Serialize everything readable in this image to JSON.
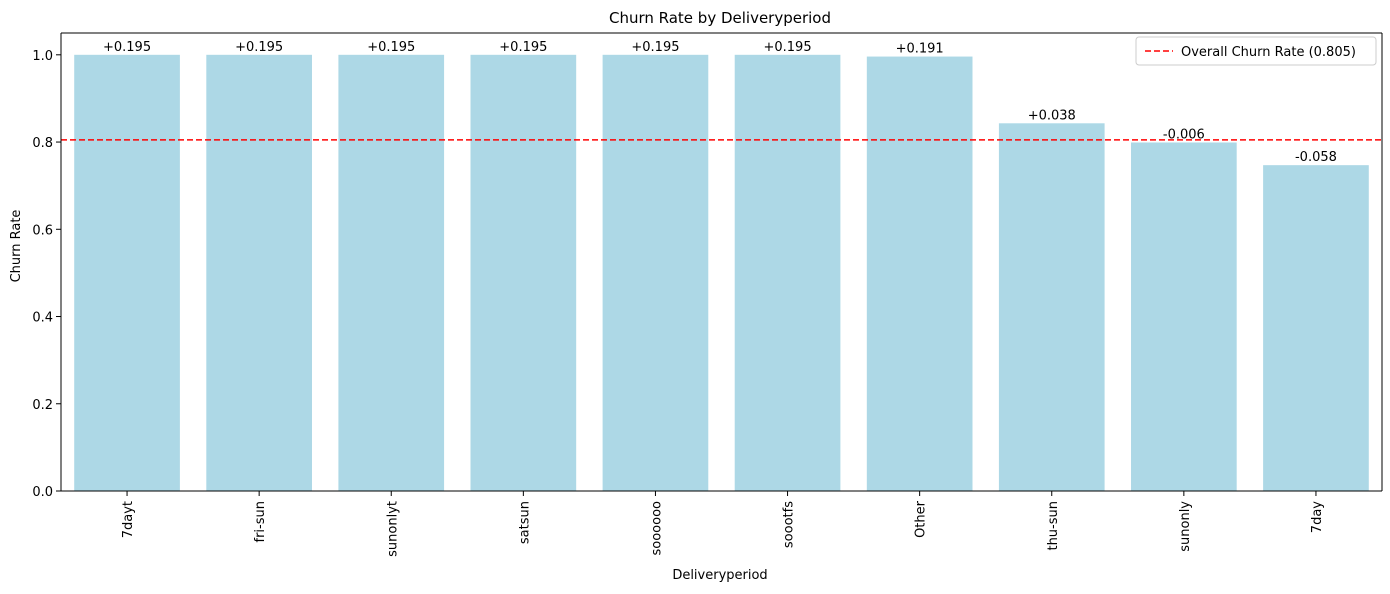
{
  "chart_data": {
    "type": "bar",
    "title": "Churn Rate by Deliveryperiod",
    "xlabel": "Deliveryperiod",
    "ylabel": "Churn Rate",
    "categories": [
      "7dayt",
      "fri-sun",
      "sunonlyt",
      "satsun",
      "soooooo",
      "soootfs",
      "Other",
      "thu-sun",
      "sunonly",
      "7day"
    ],
    "values": [
      1.0,
      1.0,
      1.0,
      1.0,
      1.0,
      1.0,
      0.996,
      0.843,
      0.799,
      0.747
    ],
    "bar_labels": [
      "+0.195",
      "+0.195",
      "+0.195",
      "+0.195",
      "+0.195",
      "+0.195",
      "+0.191",
      "+0.038",
      "-0.006",
      "-0.058"
    ],
    "ylim": [
      0,
      1.05
    ],
    "yticks": [
      0.0,
      0.2,
      0.4,
      0.6,
      0.8,
      1.0
    ],
    "ytick_labels": [
      "0.0",
      "0.2",
      "0.4",
      "0.6",
      "0.8",
      "1.0"
    ],
    "reference_line": {
      "value": 0.805,
      "label": "Overall Churn Rate (0.805)",
      "style": "dashed"
    },
    "legend_position": "top-right",
    "grid": false,
    "colors": {
      "bar": "#add8e6",
      "reference_line": "#ff0000"
    }
  }
}
